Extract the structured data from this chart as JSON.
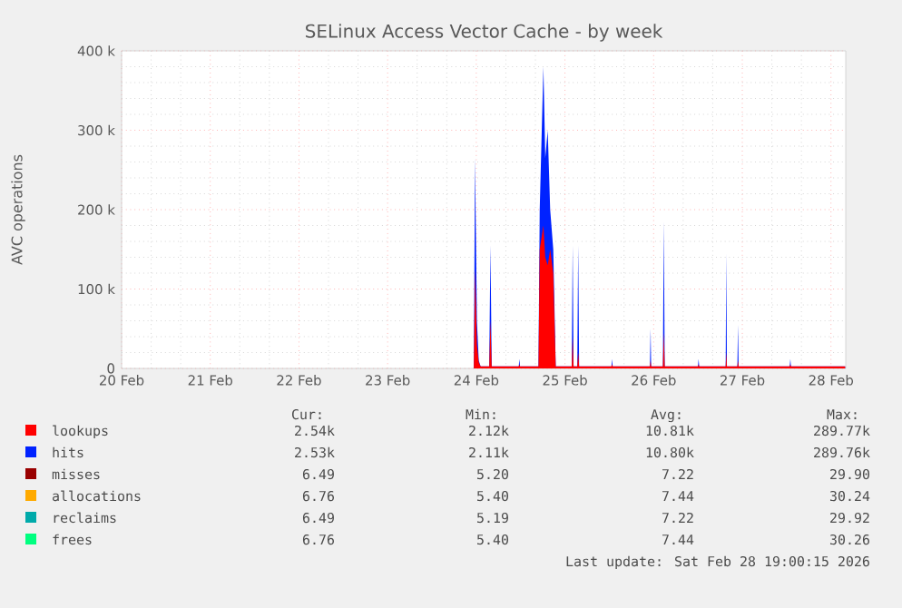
{
  "chart_data": {
    "type": "area",
    "title": "SELinux Access Vector Cache - by week",
    "ylabel": "AVC operations",
    "xlim": [
      "2026-02-20T00:00",
      "2026-02-28T04:00"
    ],
    "xticks": [
      {
        "value": "2026-02-20",
        "label": "20 Feb"
      },
      {
        "value": "2026-02-21",
        "label": "21 Feb"
      },
      {
        "value": "2026-02-22",
        "label": "22 Feb"
      },
      {
        "value": "2026-02-23",
        "label": "23 Feb"
      },
      {
        "value": "2026-02-24",
        "label": "24 Feb"
      },
      {
        "value": "2026-02-25",
        "label": "25 Feb"
      },
      {
        "value": "2026-02-26",
        "label": "26 Feb"
      },
      {
        "value": "2026-02-27",
        "label": "27 Feb"
      },
      {
        "value": "2026-02-28",
        "label": "28 Feb"
      }
    ],
    "ylim": [
      0,
      400000
    ],
    "yticks": [
      {
        "value": 0,
        "label": "0"
      },
      {
        "value": 100000,
        "label": "100 k"
      },
      {
        "value": 200000,
        "label": "200 k"
      },
      {
        "value": 300000,
        "label": "300 k"
      },
      {
        "value": 400000,
        "label": "400 k"
      }
    ],
    "grid": true,
    "legend": "bottom",
    "x": [
      "2026-02-23T23:20",
      "2026-02-23T23:40",
      "2026-02-24T00:10",
      "2026-02-24T00:40",
      "2026-02-24T01:10",
      "2026-02-24T03:30",
      "2026-02-24T03:50",
      "2026-02-24T04:10",
      "2026-02-24T11:30",
      "2026-02-24T11:40",
      "2026-02-24T11:50",
      "2026-02-24T16:50",
      "2026-02-24T17:10",
      "2026-02-24T18:10",
      "2026-02-24T18:40",
      "2026-02-24T19:20",
      "2026-02-24T20:00",
      "2026-02-24T20:50",
      "2026-02-24T21:30",
      "2026-02-25T01:50",
      "2026-02-25T02:05",
      "2026-02-25T02:20",
      "2026-02-25T03:20",
      "2026-02-25T03:35",
      "2026-02-25T03:50",
      "2026-02-25T12:35",
      "2026-02-25T12:45",
      "2026-02-25T12:55",
      "2026-02-25T23:00",
      "2026-02-25T23:10",
      "2026-02-25T23:20",
      "2026-02-26T02:30",
      "2026-02-26T02:45",
      "2026-02-26T03:00",
      "2026-02-26T12:00",
      "2026-02-26T12:10",
      "2026-02-26T12:20",
      "2026-02-26T19:30",
      "2026-02-26T19:40",
      "2026-02-26T19:50",
      "2026-02-26T22:40",
      "2026-02-26T22:50",
      "2026-02-26T23:00",
      "2026-02-27T12:50",
      "2026-02-27T13:00",
      "2026-02-27T13:10",
      "2026-02-28T03:50"
    ],
    "series": [
      {
        "name": "lookups",
        "color": "#ff0000",
        "values": [
          2500,
          125000,
          30000,
          8000,
          2500,
          2500,
          60000,
          2500,
          2500,
          5000,
          2500,
          2500,
          150000,
          180000,
          140000,
          130000,
          150000,
          120000,
          2500,
          2500,
          40000,
          2500,
          2500,
          20000,
          2500,
          2500,
          5000,
          2500,
          2500,
          10000,
          2500,
          2500,
          45000,
          2500,
          2500,
          5000,
          2500,
          2500,
          20000,
          2500,
          2500,
          10000,
          2500,
          2500,
          5000,
          2500,
          2540
        ]
      },
      {
        "name": "hits",
        "color": "#0022ff",
        "values": [
          2500,
          265000,
          60000,
          10000,
          2500,
          2500,
          155000,
          2500,
          2500,
          12000,
          2500,
          2500,
          200000,
          380000,
          265000,
          300000,
          200000,
          150000,
          2500,
          2500,
          155000,
          2500,
          2500,
          155000,
          2500,
          2500,
          12000,
          2500,
          2500,
          50000,
          2500,
          2500,
          185000,
          2500,
          2500,
          12000,
          2500,
          2500,
          145000,
          2500,
          2500,
          55000,
          2500,
          2500,
          12000,
          2500,
          2530
        ]
      },
      {
        "name": "misses",
        "color": "#990000",
        "values": [
          null,
          null,
          null,
          null,
          null,
          null,
          null,
          null,
          null,
          null,
          null,
          null,
          null,
          null,
          null,
          null,
          null,
          null,
          null,
          null,
          null,
          null,
          null,
          null,
          null,
          null,
          null,
          null,
          null,
          null,
          null,
          null,
          null,
          null,
          null,
          null,
          null,
          null,
          null,
          null,
          null,
          null,
          null,
          null,
          null,
          null,
          null
        ]
      },
      {
        "name": "allocations",
        "color": "#ffaa00",
        "values": [
          null,
          null,
          null,
          null,
          null,
          null,
          null,
          null,
          null,
          null,
          null,
          null,
          null,
          null,
          null,
          null,
          null,
          null,
          null,
          null,
          null,
          null,
          null,
          null,
          null,
          null,
          null,
          null,
          null,
          null,
          null,
          null,
          null,
          null,
          null,
          null,
          null,
          null,
          null,
          null,
          null,
          null,
          null,
          null,
          null,
          null,
          null
        ]
      },
      {
        "name": "reclaims",
        "color": "#00aaaa",
        "values": [
          null,
          null,
          null,
          null,
          null,
          null,
          null,
          null,
          null,
          null,
          null,
          null,
          null,
          null,
          null,
          null,
          null,
          null,
          null,
          null,
          null,
          null,
          null,
          null,
          null,
          null,
          null,
          null,
          null,
          null,
          null,
          null,
          null,
          null,
          null,
          null,
          null,
          null,
          null,
          null,
          null,
          null,
          null,
          null,
          null,
          null,
          null
        ]
      },
      {
        "name": "frees",
        "color": "#00ff80",
        "values": [
          null,
          null,
          null,
          null,
          null,
          null,
          null,
          null,
          null,
          null,
          null,
          null,
          null,
          null,
          null,
          null,
          null,
          null,
          null,
          null,
          null,
          null,
          null,
          null,
          null,
          null,
          null,
          null,
          null,
          null,
          null,
          null,
          null,
          null,
          null,
          null,
          null,
          null,
          null,
          null,
          null,
          null,
          null,
          null,
          null,
          null,
          null
        ]
      }
    ],
    "annotations": [
      "Cur:",
      "Min:",
      "Avg:",
      "Max:",
      "2.54k",
      "2.12k",
      "10.81k",
      "289.77k",
      "2.53k",
      "2.11k",
      "10.80k",
      "289.76k",
      "6.49",
      "5.20",
      "7.22",
      "29.90",
      "6.76",
      "5.40",
      "7.44",
      "30.24",
      "6.49",
      "5.19",
      "7.22",
      "29.92",
      "6.76",
      "5.40",
      "7.44",
      "30.26",
      "Last update: Sat Feb 28 19:00:15 2026"
    ]
  }
}
